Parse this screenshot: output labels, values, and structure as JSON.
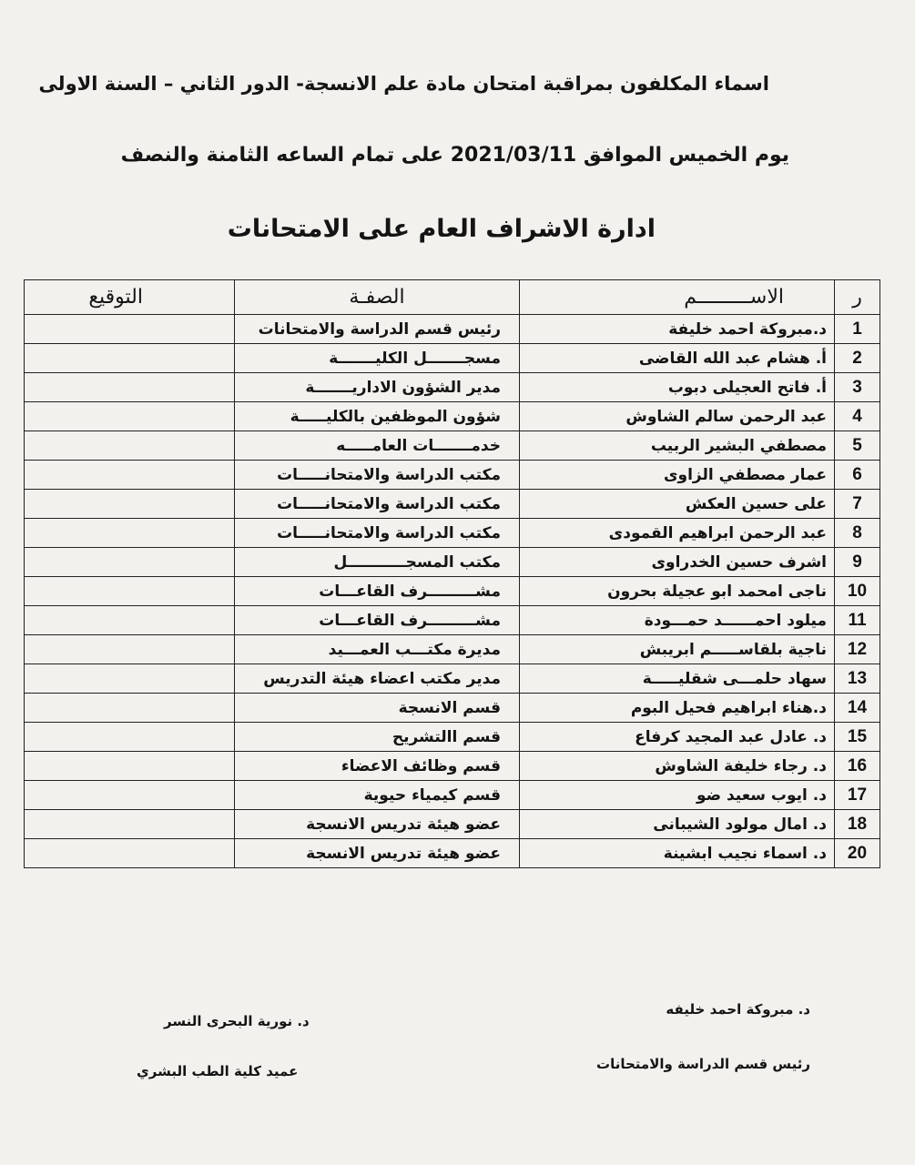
{
  "header": {
    "title_line1": "اسماء المكلفون بمراقبة امتحان مادة علم الانسجة- الدور الثاني – السنة الاولى",
    "title_line2": "يوم الخميس الموافق 2021/03/11 على تمام الساعه الثامنة والنصف",
    "title_line3": "ادارة الاشراف العام على الامتحانات"
  },
  "table": {
    "columns": {
      "num": "ر",
      "name": "الاســـــــــم",
      "role": "الصفـة",
      "signature": "التوقيع"
    },
    "rows": [
      {
        "num": "1",
        "name": "د.مبروكة احمد خليفة",
        "role": "رئيس قسم الدراسة والامتحانات",
        "signature": ""
      },
      {
        "num": "2",
        "name": "أ. هشام عبد الله القاضى",
        "role": "مسجـــــــل الكليـــــــة",
        "signature": ""
      },
      {
        "num": "3",
        "name": "أ. فاتح العجيلى دبوب",
        "role": "مدير الشؤون الاداريـــــــة",
        "signature": ""
      },
      {
        "num": "4",
        "name": "عبد الرحمن سالم الشاوش",
        "role": "شؤون الموظفين بالكليـــــة",
        "signature": ""
      },
      {
        "num": "5",
        "name": "مصطفي البشير الربيب",
        "role": "خدمـــــــات العامـــــه",
        "signature": ""
      },
      {
        "num": "6",
        "name": "عمار مصطفي الزاوى",
        "role": "مكتب الدراسة والامتحانـــــات",
        "signature": ""
      },
      {
        "num": "7",
        "name": "على حسين العكش",
        "role": "مكتب الدراسة والامتحانـــــات",
        "signature": ""
      },
      {
        "num": "8",
        "name": "عبد الرحمن ابراهيم القمودى",
        "role": "مكتب الدراسة والامتحانـــــات",
        "signature": ""
      },
      {
        "num": "9",
        "name": "اشرف حسين الخدراوى",
        "role": "مكتب المسجـــــــــــل",
        "signature": ""
      },
      {
        "num": "10",
        "name": "ناجى امحمد ابو عجيلة بحرون",
        "role": "مشـــــــــرف القاعـــات",
        "signature": ""
      },
      {
        "num": "11",
        "name": "ميلود احمــــــد حمـــودة",
        "role": "مشـــــــــرف القاعـــات",
        "signature": ""
      },
      {
        "num": "12",
        "name": "ناجية بلقاســـــم ابريبش",
        "role": "مديرة مكتـــب العمـــيد",
        "signature": ""
      },
      {
        "num": "13",
        "name": "سهاد حلمـــى شقليـــــة",
        "role": "مدير مكتب اعضاء هيئة التدريس",
        "signature": ""
      },
      {
        "num": "14",
        "name": "د.هناء ابراهيم فحيل البوم",
        "role": "قسم الانسجة",
        "signature": ""
      },
      {
        "num": "15",
        "name": "د. عادل  عبد المجيد كرفاع",
        "role": "قسم االتشريح",
        "signature": ""
      },
      {
        "num": "16",
        "name": "د. رجاء خليفة الشاوش",
        "role": "قسم وظائف الاعضاء",
        "signature": ""
      },
      {
        "num": "17",
        "name": "د. ايوب سعيد ضو",
        "role": "قسم كيمياء حيوية",
        "signature": ""
      },
      {
        "num": "18",
        "name": "د. امال مولود الشيبانى",
        "role": "عضو هيئة تدريس الانسجة",
        "signature": ""
      },
      {
        "num": "20",
        "name": "د. اسماء نجيب ابشينة",
        "role": "عضو هيئة تدريس  الانسجة",
        "signature": ""
      }
    ]
  },
  "signatures": {
    "right": {
      "name": "د.  مبروكة احمد خليفه",
      "title": "رئيس قسم الدراسة والامتحانات"
    },
    "left": {
      "name": "د. نورية البحرى النسر",
      "title": "عميد كلية الطب البشري"
    }
  }
}
